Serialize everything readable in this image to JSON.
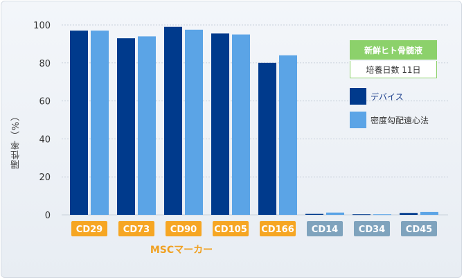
{
  "chart_data": {
    "type": "bar",
    "ylabel": "陽性率（%）",
    "xlabel": "MSCマーカー",
    "ylim": [
      0,
      100
    ],
    "yticks": [
      0,
      20,
      40,
      60,
      80,
      100
    ],
    "categories": [
      "CD29",
      "CD73",
      "CD90",
      "CD105",
      "CD166",
      "CD14",
      "CD34",
      "CD45"
    ],
    "category_groups": [
      "positive",
      "positive",
      "positive",
      "positive",
      "positive",
      "negative",
      "negative",
      "negative"
    ],
    "series": [
      {
        "name": "デバイス",
        "color": "#003a8c",
        "values": [
          97,
          93,
          99,
          95.5,
          80,
          0.5,
          0.3,
          1
        ]
      },
      {
        "name": "密度勾配遠心法",
        "color": "#5ba4e6",
        "values": [
          97,
          94,
          97.5,
          95,
          84,
          1.2,
          0.3,
          1.5
        ]
      }
    ],
    "legend": {
      "title": "新鮮ヒト骨髄液",
      "subtitle": "培養日数 11日",
      "position": "top-right"
    },
    "colors": {
      "positive_label": "#f6a623",
      "negative_label": "#7fa3bd",
      "legend_header": "#8cd16b"
    }
  }
}
